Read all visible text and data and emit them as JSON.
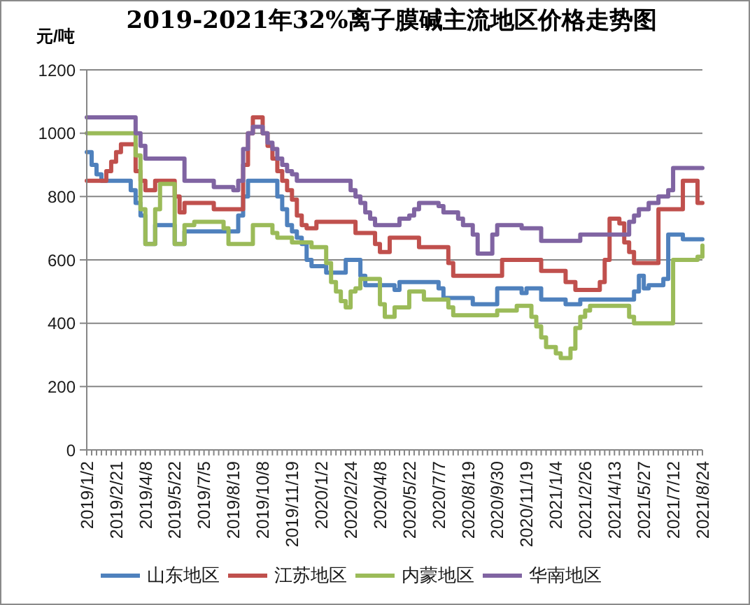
{
  "chart_data": {
    "type": "step",
    "title": "2019-2021年32%离子膜碱主流地区价格走势图",
    "ylabel": "元/吨",
    "categories": [
      "2019/1/2",
      null,
      null,
      null,
      null,
      null,
      "2019/2/21",
      null,
      null,
      null,
      null,
      null,
      "2019/4/8",
      null,
      null,
      null,
      null,
      null,
      "2019/5/22",
      null,
      null,
      null,
      null,
      null,
      "2019/7/5",
      null,
      null,
      null,
      null,
      null,
      "2019/8/19",
      null,
      null,
      null,
      null,
      null,
      "2019/10/8",
      null,
      null,
      null,
      null,
      null,
      "2019/11/19",
      null,
      null,
      null,
      null,
      null,
      "2020/1/2",
      null,
      null,
      null,
      null,
      null,
      "2020/2/24",
      null,
      null,
      null,
      null,
      null,
      "2020/4/8",
      null,
      null,
      null,
      null,
      null,
      "2020/5/22",
      null,
      null,
      null,
      null,
      null,
      "2020/7/7",
      null,
      null,
      null,
      null,
      null,
      "2020/8/19",
      null,
      null,
      null,
      null,
      null,
      "2020/9/30",
      null,
      null,
      null,
      null,
      null,
      "2020/11/19",
      null,
      null,
      null,
      null,
      null,
      "2021/1/4",
      null,
      null,
      null,
      null,
      null,
      "2021/2/26",
      null,
      null,
      null,
      null,
      null,
      "2021/4/13",
      null,
      null,
      null,
      null,
      null,
      "2021/5/27",
      null,
      null,
      null,
      null,
      null,
      "2021/7/12",
      null,
      null,
      null,
      null,
      null,
      "2021/8/24"
    ],
    "series": [
      {
        "name": "山东地区",
        "color": "#4f81bd",
        "values": [
          940,
          900,
          870,
          850,
          850,
          850,
          850,
          850,
          850,
          820,
          780,
          740,
          650,
          650,
          710,
          710,
          710,
          710,
          650,
          650,
          690,
          690,
          690,
          690,
          690,
          690,
          690,
          690,
          690,
          690,
          690,
          740,
          800,
          850,
          850,
          850,
          850,
          850,
          850,
          800,
          760,
          710,
          690,
          670,
          650,
          600,
          580,
          580,
          580,
          560,
          560,
          560,
          560,
          600,
          600,
          600,
          550,
          520,
          520,
          520,
          520,
          520,
          520,
          505,
          530,
          530,
          530,
          530,
          530,
          530,
          530,
          530,
          510,
          480,
          480,
          480,
          480,
          480,
          480,
          460,
          460,
          460,
          460,
          460,
          510,
          510,
          510,
          510,
          510,
          495,
          510,
          510,
          510,
          475,
          475,
          475,
          475,
          475,
          460,
          460,
          460,
          475,
          475,
          475,
          475,
          475,
          475,
          475,
          475,
          475,
          475,
          475,
          500,
          550,
          510,
          520,
          520,
          520,
          540,
          680,
          680,
          680,
          665,
          665,
          665,
          665,
          665
        ]
      },
      {
        "name": "江苏地区",
        "color": "#c0504d",
        "values": [
          850,
          850,
          850,
          850,
          880,
          910,
          940,
          965,
          965,
          965,
          880,
          850,
          820,
          820,
          850,
          850,
          850,
          850,
          800,
          750,
          780,
          780,
          780,
          780,
          780,
          780,
          760,
          760,
          760,
          760,
          760,
          760,
          900,
          1000,
          1050,
          1050,
          1000,
          960,
          920,
          880,
          850,
          820,
          790,
          740,
          710,
          700,
          700,
          720,
          720,
          720,
          720,
          720,
          720,
          720,
          720,
          685,
          685,
          685,
          685,
          650,
          625,
          625,
          670,
          670,
          670,
          670,
          670,
          670,
          640,
          640,
          640,
          640,
          640,
          640,
          590,
          550,
          550,
          550,
          550,
          550,
          550,
          550,
          550,
          550,
          550,
          600,
          600,
          600,
          600,
          600,
          600,
          600,
          600,
          565,
          565,
          565,
          565,
          565,
          530,
          530,
          505,
          505,
          505,
          505,
          505,
          530,
          600,
          730,
          730,
          715,
          655,
          625,
          590,
          590,
          590,
          590,
          590,
          760,
          760,
          760,
          760,
          760,
          850,
          850,
          850,
          780,
          780
        ]
      },
      {
        "name": "内蒙地区",
        "color": "#9bbb59",
        "values": [
          1000,
          1000,
          1000,
          1000,
          1000,
          1000,
          1000,
          1000,
          1000,
          1000,
          930,
          760,
          650,
          650,
          760,
          840,
          840,
          840,
          650,
          650,
          710,
          710,
          720,
          720,
          720,
          720,
          720,
          720,
          700,
          650,
          650,
          650,
          650,
          650,
          710,
          710,
          710,
          710,
          685,
          670,
          670,
          670,
          655,
          655,
          655,
          655,
          640,
          640,
          640,
          590,
          530,
          500,
          470,
          450,
          500,
          510,
          540,
          540,
          540,
          540,
          460,
          420,
          420,
          450,
          450,
          450,
          500,
          500,
          500,
          475,
          475,
          475,
          475,
          475,
          450,
          425,
          425,
          425,
          425,
          425,
          425,
          425,
          425,
          425,
          440,
          440,
          440,
          440,
          455,
          455,
          455,
          420,
          390,
          355,
          325,
          325,
          305,
          290,
          290,
          320,
          385,
          420,
          440,
          455,
          455,
          455,
          455,
          455,
          455,
          455,
          455,
          420,
          400,
          400,
          400,
          400,
          400,
          400,
          400,
          400,
          600,
          600,
          600,
          600,
          600,
          610,
          645
        ]
      },
      {
        "name": "华南地区",
        "color": "#8064a2",
        "values": [
          1050,
          1050,
          1050,
          1050,
          1050,
          1050,
          1050,
          1050,
          1050,
          1050,
          1000,
          960,
          920,
          920,
          920,
          920,
          920,
          920,
          920,
          920,
          850,
          850,
          850,
          850,
          850,
          850,
          830,
          830,
          830,
          830,
          820,
          850,
          950,
          1000,
          1020,
          1020,
          1000,
          970,
          950,
          920,
          900,
          880,
          870,
          850,
          850,
          850,
          850,
          850,
          850,
          850,
          850,
          850,
          850,
          850,
          820,
          800,
          780,
          750,
          730,
          710,
          710,
          710,
          710,
          710,
          730,
          730,
          740,
          760,
          780,
          780,
          780,
          780,
          770,
          750,
          750,
          750,
          730,
          710,
          710,
          680,
          620,
          620,
          620,
          680,
          710,
          710,
          710,
          710,
          710,
          700,
          700,
          700,
          700,
          660,
          660,
          660,
          660,
          660,
          660,
          660,
          660,
          680,
          680,
          680,
          680,
          680,
          680,
          680,
          680,
          680,
          680,
          720,
          740,
          760,
          760,
          780,
          780,
          800,
          800,
          820,
          890,
          890,
          890,
          890,
          890,
          890,
          890
        ]
      }
    ],
    "ylim": [
      0,
      1200
    ],
    "yticks": [
      0,
      200,
      400,
      600,
      800,
      1000,
      1200
    ],
    "grid": "y",
    "legend": "bottom"
  }
}
